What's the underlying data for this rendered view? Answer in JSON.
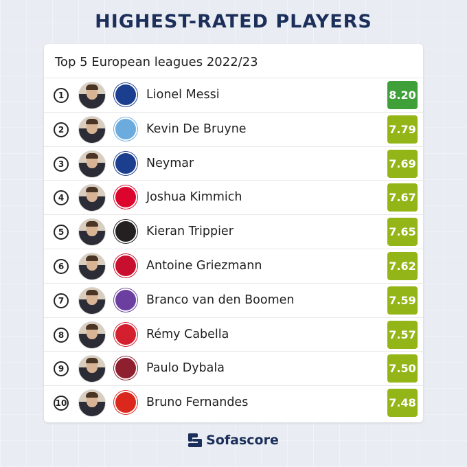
{
  "title": "HIGHEST-RATED PLAYERS",
  "subtitle": "Top 5 European leagues 2022/23",
  "players": [
    {
      "rank": "1",
      "name": "Lionel Messi",
      "rating": "8.20",
      "rating_color": "#3fa03a",
      "club_icon": "psg-crest-icon",
      "club_color": "#1b3f8e"
    },
    {
      "rank": "2",
      "name": "Kevin De Bruyne",
      "rating": "7.79",
      "rating_color": "#94b517",
      "club_icon": "man-city-crest-icon",
      "club_color": "#6cabdd"
    },
    {
      "rank": "3",
      "name": "Neymar",
      "rating": "7.69",
      "rating_color": "#94b517",
      "club_icon": "psg-crest-icon",
      "club_color": "#1b3f8e"
    },
    {
      "rank": "4",
      "name": "Joshua Kimmich",
      "rating": "7.67",
      "rating_color": "#94b517",
      "club_icon": "bayern-crest-icon",
      "club_color": "#dc052d"
    },
    {
      "rank": "5",
      "name": "Kieran Trippier",
      "rating": "7.65",
      "rating_color": "#94b517",
      "club_icon": "newcastle-crest-icon",
      "club_color": "#241f20"
    },
    {
      "rank": "6",
      "name": "Antoine Griezmann",
      "rating": "7.62",
      "rating_color": "#94b517",
      "club_icon": "atletico-crest-icon",
      "club_color": "#c8102e"
    },
    {
      "rank": "7",
      "name": "Branco van den Boomen",
      "rating": "7.59",
      "rating_color": "#94b517",
      "club_icon": "toulouse-crest-icon",
      "club_color": "#6b3fa0"
    },
    {
      "rank": "8",
      "name": "Rémy Cabella",
      "rating": "7.57",
      "rating_color": "#94b517",
      "club_icon": "lille-crest-icon",
      "club_color": "#d41f2f"
    },
    {
      "rank": "9",
      "name": "Paulo Dybala",
      "rating": "7.50",
      "rating_color": "#94b517",
      "club_icon": "roma-crest-icon",
      "club_color": "#8e1f2f"
    },
    {
      "rank": "10",
      "name": "Bruno Fernandes",
      "rating": "7.48",
      "rating_color": "#94b517",
      "club_icon": "man-united-crest-icon",
      "club_color": "#da291c"
    }
  ],
  "footer": {
    "brand": "Sofascore",
    "icon": "sofascore-logo-icon"
  }
}
